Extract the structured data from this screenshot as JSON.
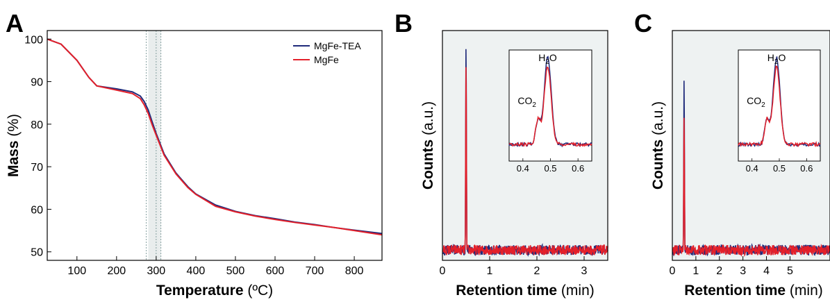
{
  "colors": {
    "series_a": "#1f2a7a",
    "series_b": "#e3202a",
    "panel_bg": "#eef2f2",
    "vline": "#6a8a8a"
  },
  "chart_data": [
    {
      "panel": "A",
      "type": "line",
      "xlabel_bold": "Temperature",
      "xlabel_unit": "(ºC)",
      "ylabel_bold": "Mass",
      "ylabel_unit": "(%)",
      "xlim": [
        25,
        870
      ],
      "ylim": [
        48,
        102
      ],
      "xticks": [
        100,
        200,
        300,
        400,
        500,
        600,
        700,
        800
      ],
      "yticks": [
        50,
        60,
        70,
        80,
        90,
        100
      ],
      "legend_position": "top-right",
      "vertical_band": [
        280,
        312
      ],
      "vertical_lines": [
        275,
        300,
        312
      ],
      "series": [
        {
          "name": "MgFe-TEA",
          "color_key": "series_a",
          "x": [
            25,
            60,
            100,
            130,
            150,
            200,
            240,
            260,
            270,
            280,
            290,
            300,
            320,
            350,
            380,
            400,
            450,
            500,
            550,
            600,
            650,
            700,
            750,
            800,
            870
          ],
          "y": [
            100.0,
            98.8,
            95.0,
            91.0,
            89.0,
            88.3,
            87.6,
            86.6,
            85.3,
            83.3,
            80.5,
            77.8,
            73.0,
            68.5,
            65.3,
            63.6,
            61.0,
            59.5,
            58.5,
            57.8,
            57.0,
            56.4,
            55.7,
            55.1,
            54.3
          ]
        },
        {
          "name": "MgFe",
          "color_key": "series_b",
          "x": [
            25,
            60,
            100,
            130,
            150,
            200,
            240,
            260,
            270,
            280,
            290,
            300,
            320,
            350,
            380,
            400,
            450,
            500,
            550,
            600,
            650,
            700,
            750,
            800,
            870
          ],
          "y": [
            100.0,
            98.8,
            95.0,
            91.0,
            89.0,
            88.0,
            87.2,
            86.0,
            84.5,
            82.5,
            79.8,
            77.4,
            72.7,
            68.3,
            65.1,
            63.5,
            60.7,
            59.4,
            58.4,
            57.6,
            56.9,
            56.3,
            55.7,
            55.0,
            54.0
          ]
        }
      ]
    },
    {
      "panel": "B",
      "type": "line",
      "xlabel_bold": "Retention time",
      "xlabel_unit": "(min)",
      "ylabel_bold": "Counts",
      "ylabel_unit": "(a.u.)",
      "xlim": [
        0,
        3.5
      ],
      "ylim": [
        0,
        1
      ],
      "xticks": [
        0,
        1,
        2,
        3
      ],
      "yticks": [],
      "peak_x": 0.5,
      "peak_a": 1.0,
      "peak_b": 0.91,
      "baseline": 0.045,
      "noise": 0.02,
      "inset": {
        "xlim": [
          0.35,
          0.65
        ],
        "xticks": [
          0.4,
          0.5,
          0.6
        ],
        "annotations": [
          {
            "label": "CO",
            "sub": "2",
            "x": 0.44
          },
          {
            "label": "H",
            "sub": "2",
            "tail": "O",
            "x": 0.49
          }
        ]
      }
    },
    {
      "panel": "C",
      "type": "line",
      "xlabel_bold": "Retention time",
      "xlabel_unit": "(min)",
      "ylabel_bold": "Counts",
      "ylabel_unit": "(a.u.)",
      "xlim": [
        0,
        6.7
      ],
      "ylim": [
        0,
        1
      ],
      "xticks": [
        0,
        1,
        2,
        3,
        4,
        5
      ],
      "yticks": [],
      "peak_x": 0.5,
      "peak_a": 0.82,
      "peak_b": 0.64,
      "baseline": 0.045,
      "noise": 0.02,
      "inset": {
        "xlim": [
          0.35,
          0.65
        ],
        "xticks": [
          0.4,
          0.5,
          0.6
        ],
        "annotations": [
          {
            "label": "CO",
            "sub": "2",
            "x": 0.44
          },
          {
            "label": "H",
            "sub": "2",
            "tail": "O",
            "x": 0.49
          }
        ]
      }
    }
  ]
}
